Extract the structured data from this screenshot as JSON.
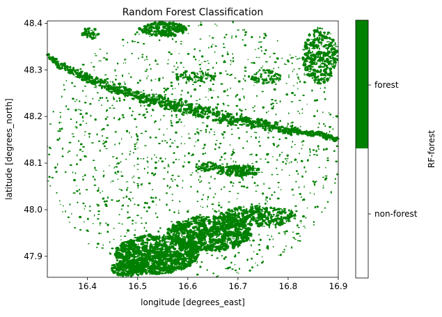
{
  "chart_data": {
    "type": "heatmap",
    "title": "Random Forest Classification",
    "xlabel": "longitude [degrees_east]",
    "ylabel": "latitude [degrees_north]",
    "xlim": [
      16.32,
      16.9
    ],
    "ylim": [
      47.855,
      48.405
    ],
    "xticks": [
      16.4,
      16.5,
      16.6,
      16.7,
      16.8,
      16.9
    ],
    "yticks": [
      47.9,
      48.0,
      48.1,
      48.2,
      48.3,
      48.4
    ],
    "xtick_labels": [
      "16.4",
      "16.5",
      "16.6",
      "16.7",
      "16.8",
      "16.9"
    ],
    "ytick_labels": [
      "47.9",
      "48.0",
      "48.1",
      "48.2",
      "48.3",
      "48.4"
    ],
    "colorbar": {
      "label": "RF-forest",
      "classes": [
        {
          "name": "non-forest",
          "color": "#ffffff"
        },
        {
          "name": "forest",
          "color": "#008000"
        }
      ]
    },
    "colors": {
      "forest": "#008000",
      "non_forest": "#ffffff"
    },
    "grid": false
  }
}
